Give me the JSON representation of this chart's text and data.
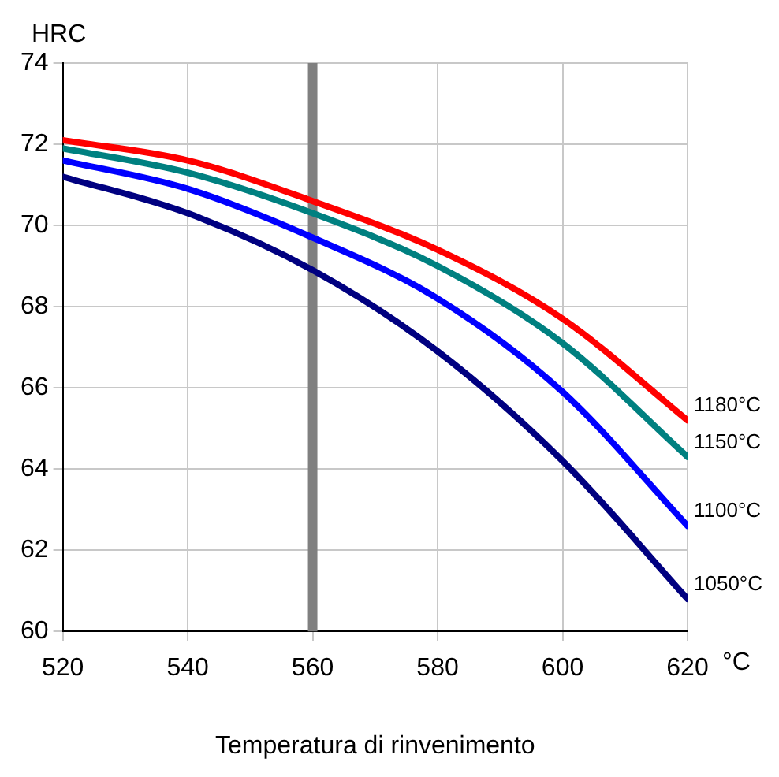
{
  "chart_data": {
    "type": "line",
    "ylabel": "HRC",
    "xlabel": "Temperatura di rinvenimento",
    "annotations": [
      "°C"
    ],
    "x": [
      520,
      540,
      560,
      580,
      600,
      620
    ],
    "series": [
      {
        "name": "1180°C",
        "color": "#ff0000",
        "values": [
          72.1,
          71.6,
          70.6,
          69.4,
          67.7,
          65.2
        ]
      },
      {
        "name": "1150°C",
        "color": "#008080",
        "values": [
          71.9,
          71.3,
          70.3,
          69.0,
          67.1,
          64.3
        ]
      },
      {
        "name": "1100°C",
        "color": "#0000ff",
        "values": [
          71.6,
          70.9,
          69.7,
          68.2,
          65.9,
          62.6
        ]
      },
      {
        "name": "1050°C",
        "color": "#000080",
        "values": [
          71.2,
          70.3,
          68.9,
          66.9,
          64.2,
          60.8
        ]
      }
    ],
    "xlim": [
      520,
      620
    ],
    "xticks": [
      520,
      540,
      560,
      580,
      600,
      620
    ],
    "ylim": [
      60,
      74
    ],
    "yticks": [
      60,
      62,
      64,
      66,
      68,
      70,
      72,
      74
    ],
    "grid": true,
    "legend": false,
    "marker": "none",
    "line_style": "solid",
    "ref_lines": [
      {
        "axis": "x",
        "value": 560,
        "color": "#808080"
      }
    ]
  }
}
